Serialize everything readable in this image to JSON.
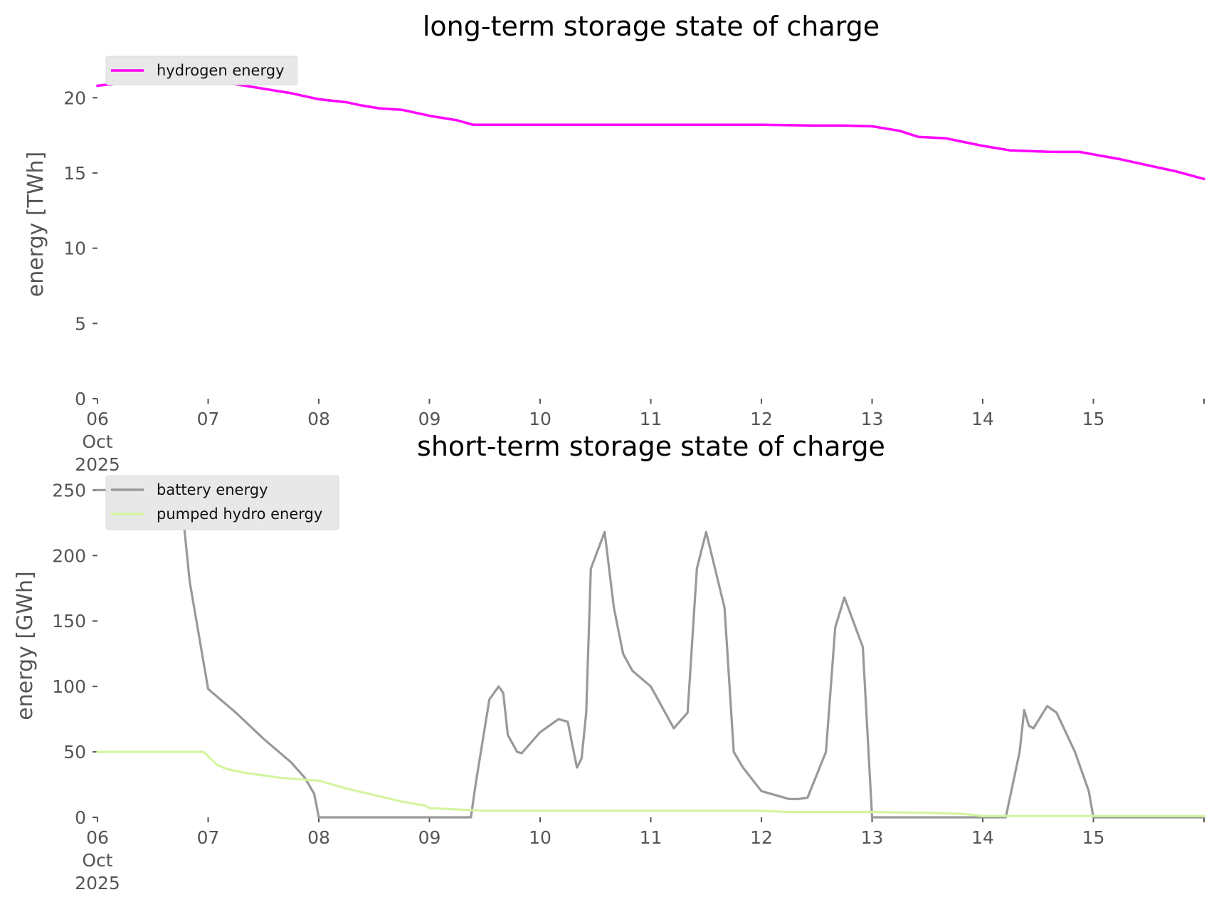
{
  "chart_data": [
    {
      "type": "line",
      "title": "long-term storage state of charge",
      "xlabel": "",
      "ylabel": "energy [TWh]",
      "ylim": [
        0,
        22
      ],
      "xlim": [
        "2025-10-06T00:00",
        "2025-10-16T00:00"
      ],
      "yticks": [
        0,
        5,
        10,
        15,
        20
      ],
      "xticks": [
        {
          "x": "2025-10-06",
          "label": "06",
          "sublabel": [
            "Oct",
            "2025"
          ]
        },
        {
          "x": "2025-10-07",
          "label": "07"
        },
        {
          "x": "2025-10-08",
          "label": "08"
        },
        {
          "x": "2025-10-09",
          "label": "09"
        },
        {
          "x": "2025-10-10",
          "label": "10"
        },
        {
          "x": "2025-10-11",
          "label": "11"
        },
        {
          "x": "2025-10-12",
          "label": "12"
        },
        {
          "x": "2025-10-13",
          "label": "13"
        },
        {
          "x": "2025-10-14",
          "label": "14"
        },
        {
          "x": "2025-10-15",
          "label": "15"
        }
      ],
      "grid": false,
      "legend_position": "top-left",
      "series": [
        {
          "name": "hydrogen energy",
          "color": "#ff00ff",
          "x": [
            "2025-10-06T00:00",
            "2025-10-06T06:00",
            "2025-10-06T12:00",
            "2025-10-06T18:00",
            "2025-10-07T00:00",
            "2025-10-07T06:00",
            "2025-10-07T12:00",
            "2025-10-07T18:00",
            "2025-10-08T00:00",
            "2025-10-08T06:00",
            "2025-10-08T09:00",
            "2025-10-08T13:00",
            "2025-10-08T18:00",
            "2025-10-09T00:00",
            "2025-10-09T06:00",
            "2025-10-09T09:30",
            "2025-10-10T00:00",
            "2025-10-11T00:00",
            "2025-10-12T00:00",
            "2025-10-12T12:00",
            "2025-10-12T18:00",
            "2025-10-13T00:00",
            "2025-10-13T06:00",
            "2025-10-13T10:00",
            "2025-10-13T16:00",
            "2025-10-14T00:00",
            "2025-10-14T06:00",
            "2025-10-14T15:00",
            "2025-10-14T21:00",
            "2025-10-15T06:00",
            "2025-10-15T12:00",
            "2025-10-15T18:00",
            "2025-10-16T00:00"
          ],
          "y": [
            20.8,
            21.0,
            21.1,
            21.15,
            21.1,
            20.9,
            20.6,
            20.3,
            19.9,
            19.7,
            19.5,
            19.3,
            19.2,
            18.8,
            18.5,
            18.2,
            18.2,
            18.2,
            18.2,
            18.15,
            18.15,
            18.1,
            17.8,
            17.4,
            17.3,
            16.8,
            16.5,
            16.4,
            16.4,
            15.9,
            15.5,
            15.1,
            14.6
          ]
        }
      ]
    },
    {
      "type": "line",
      "title": "short-term storage state of charge",
      "xlabel": "",
      "ylabel": "energy [GWh]",
      "ylim": [
        0,
        260
      ],
      "xlim": [
        "2025-10-06T00:00",
        "2025-10-16T00:00"
      ],
      "yticks": [
        0,
        50,
        100,
        150,
        200,
        250
      ],
      "xticks": [
        {
          "x": "2025-10-06",
          "label": "06",
          "sublabel": [
            "Oct",
            "2025"
          ]
        },
        {
          "x": "2025-10-07",
          "label": "07"
        },
        {
          "x": "2025-10-08",
          "label": "08"
        },
        {
          "x": "2025-10-09",
          "label": "09"
        },
        {
          "x": "2025-10-10",
          "label": "10"
        },
        {
          "x": "2025-10-11",
          "label": "11"
        },
        {
          "x": "2025-10-12",
          "label": "12"
        },
        {
          "x": "2025-10-13",
          "label": "13"
        },
        {
          "x": "2025-10-14",
          "label": "14"
        },
        {
          "x": "2025-10-15",
          "label": "15"
        }
      ],
      "grid": false,
      "legend_position": "top-left",
      "series": [
        {
          "name": "battery energy",
          "color": "#999999",
          "x": [
            "2025-10-06T00:00",
            "2025-10-06T18:00",
            "2025-10-06T20:00",
            "2025-10-07T00:00",
            "2025-10-07T06:00",
            "2025-10-07T12:00",
            "2025-10-07T18:00",
            "2025-10-07T21:00",
            "2025-10-07T23:00",
            "2025-10-08T00:00",
            "2025-10-09T09:00",
            "2025-10-09T10:00",
            "2025-10-09T13:00",
            "2025-10-09T15:00",
            "2025-10-09T16:00",
            "2025-10-09T17:00",
            "2025-10-09T19:00",
            "2025-10-09T20:00",
            "2025-10-09T21:00",
            "2025-10-10T00:00",
            "2025-10-10T04:00",
            "2025-10-10T06:00",
            "2025-10-10T07:00",
            "2025-10-10T08:00",
            "2025-10-10T09:00",
            "2025-10-10T10:00",
            "2025-10-10T11:00",
            "2025-10-10T14:00",
            "2025-10-10T16:00",
            "2025-10-10T18:00",
            "2025-10-10T20:00",
            "2025-10-11T00:00",
            "2025-10-11T05:00",
            "2025-10-11T08:00",
            "2025-10-11T10:00",
            "2025-10-11T12:00",
            "2025-10-11T16:00",
            "2025-10-11T18:00",
            "2025-10-11T20:00",
            "2025-10-12T00:00",
            "2025-10-12T06:00",
            "2025-10-12T08:00",
            "2025-10-12T10:00",
            "2025-10-12T14:00",
            "2025-10-12T16:00",
            "2025-10-12T18:00",
            "2025-10-12T22:00",
            "2025-10-13T00:00",
            "2025-10-14T05:00",
            "2025-10-14T08:00",
            "2025-10-14T09:00",
            "2025-10-14T10:00",
            "2025-10-14T11:00",
            "2025-10-14T14:00",
            "2025-10-14T16:00",
            "2025-10-14T20:00",
            "2025-10-14T23:00",
            "2025-10-15T00:00",
            "2025-10-16T00:00"
          ],
          "y": [
            250,
            250,
            180,
            98,
            80,
            60,
            42,
            30,
            18,
            0,
            0,
            25,
            90,
            100,
            95,
            63,
            50,
            49,
            53,
            65,
            75,
            73,
            55,
            38,
            45,
            80,
            190,
            218,
            160,
            125,
            112,
            100,
            68,
            80,
            190,
            218,
            160,
            50,
            38,
            20,
            14,
            14,
            15,
            50,
            145,
            168,
            130,
            0,
            0,
            50,
            82,
            70,
            68,
            85,
            80,
            50,
            20,
            0,
            0
          ]
        },
        {
          "name": "pumped hydro energy",
          "color": "#d4f5a0",
          "x": [
            "2025-10-06T00:00",
            "2025-10-06T23:00",
            "2025-10-07T02:00",
            "2025-10-07T04:00",
            "2025-10-07T08:00",
            "2025-10-07T16:00",
            "2025-10-08T00:00",
            "2025-10-08T06:00",
            "2025-10-08T12:00",
            "2025-10-08T18:00",
            "2025-10-08T23:00",
            "2025-10-09T00:00",
            "2025-10-09T12:00",
            "2025-10-10T00:00",
            "2025-10-11T00:00",
            "2025-10-12T00:00",
            "2025-10-12T06:00",
            "2025-10-13T00:00",
            "2025-10-13T12:00",
            "2025-10-13T20:00",
            "2025-10-14T00:00",
            "2025-10-16T00:00"
          ],
          "y": [
            50,
            50,
            40,
            37,
            34,
            30,
            28,
            22,
            17,
            12,
            9,
            7,
            5,
            5,
            5,
            5,
            4,
            4,
            3.5,
            2.5,
            1,
            1
          ]
        }
      ]
    }
  ]
}
